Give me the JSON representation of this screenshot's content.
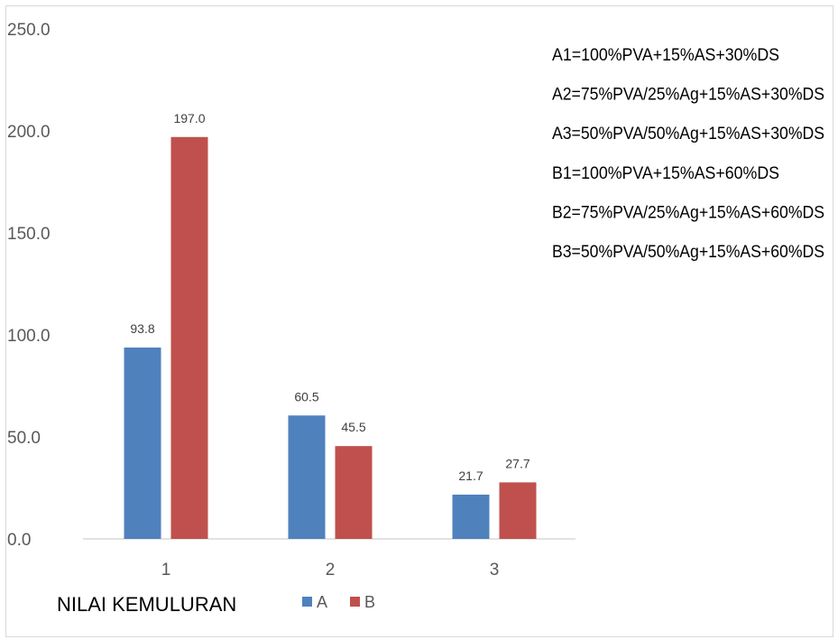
{
  "chart_data": {
    "type": "bar",
    "categories": [
      "1",
      "2",
      "3"
    ],
    "series": [
      {
        "name": "A",
        "values": [
          93.8,
          60.5,
          21.7
        ],
        "labels": [
          "93.8",
          "60.5",
          "21.7"
        ],
        "color": "#4f81bd"
      },
      {
        "name": "B",
        "values": [
          197.0,
          45.5,
          27.7
        ],
        "labels": [
          "197.0",
          "45.5",
          "27.7"
        ],
        "color": "#c0504d"
      }
    ],
    "ylim": [
      0,
      250
    ],
    "yticks": [
      0,
      50,
      100,
      150,
      200,
      250
    ],
    "ytick_labels": [
      "0.0",
      "50.0",
      "100.0",
      "150.0",
      "200.0",
      "250.0"
    ],
    "xlabel": "NILAI KEMULURAN",
    "grid": false,
    "legend_position": "bottom",
    "annotations": [
      "A1=100%PVA+15%AS+30%DS",
      "A2=75%PVA/25%Ag+15%AS+30%DS",
      "A3=50%PVA/50%Ag+15%AS+30%DS",
      "B1=100%PVA+15%AS+60%DS",
      "B2=75%PVA/25%Ag+15%AS+60%DS",
      "B3=50%PVA/50%Ag+15%AS+60%DS"
    ]
  }
}
